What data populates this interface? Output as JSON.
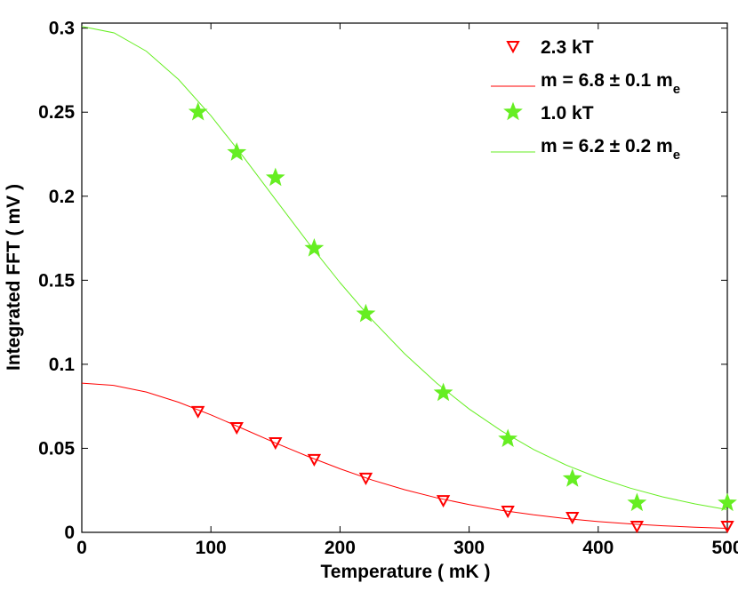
{
  "chart_data": {
    "type": "scatter",
    "x_label": "Temperature ( mK )",
    "y_label": "Integrated FFT ( mV )",
    "xlim": [
      0,
      500
    ],
    "ylim": [
      0,
      0.303
    ],
    "xticks": [
      0,
      100,
      200,
      300,
      400,
      500
    ],
    "yticks": [
      0,
      0.05,
      0.1,
      0.15,
      0.2,
      0.25,
      0.3
    ],
    "legend_position": "upper right",
    "series": [
      {
        "name": "2.3 kT",
        "mode": "markers",
        "marker": "triangle-down-open",
        "color": "#ff0000",
        "x": [
          90,
          120,
          150,
          180,
          220,
          280,
          330,
          380,
          430,
          500
        ],
        "values": [
          0.072,
          0.0624,
          0.0534,
          0.0434,
          0.0323,
          0.019,
          0.0127,
          0.009,
          0.0037,
          0.0037
        ]
      },
      {
        "name": "m = 6.8 ± 0.1 m",
        "name_subscript": "e",
        "mode": "line",
        "color": "#ff0000",
        "x": [
          0,
          25,
          50,
          75,
          100,
          125,
          150,
          175,
          200,
          225,
          250,
          275,
          300,
          325,
          350,
          375,
          400,
          425,
          450,
          475,
          500
        ],
        "values": [
          0.0888,
          0.0874,
          0.0835,
          0.0774,
          0.0699,
          0.0616,
          0.0532,
          0.0452,
          0.0378,
          0.0311,
          0.0254,
          0.0205,
          0.0165,
          0.0131,
          0.0104,
          0.0082,
          0.0064,
          0.005,
          0.0039,
          0.003,
          0.0024
        ]
      },
      {
        "name": "1.0 kT",
        "mode": "markers",
        "marker": "star",
        "color": "#66ee22",
        "x": [
          90,
          120,
          150,
          180,
          220,
          280,
          330,
          380,
          430,
          500
        ],
        "values": [
          0.25,
          0.226,
          0.211,
          0.169,
          0.13,
          0.083,
          0.0556,
          0.032,
          0.0175,
          0.0175
        ]
      },
      {
        "name": "m = 6.2 ± 0.2 m",
        "name_subscript": "e",
        "mode": "line",
        "color": "#66ee22",
        "x": [
          0,
          25,
          50,
          75,
          100,
          125,
          150,
          175,
          200,
          225,
          250,
          275,
          300,
          325,
          350,
          375,
          400,
          425,
          450,
          475,
          500
        ],
        "values": [
          0.301,
          0.2972,
          0.2863,
          0.2694,
          0.2479,
          0.2236,
          0.1981,
          0.1727,
          0.1486,
          0.1263,
          0.1063,
          0.0887,
          0.0734,
          0.0604,
          0.0493,
          0.0401,
          0.0325,
          0.0263,
          0.0211,
          0.0169,
          0.0135
        ]
      }
    ]
  }
}
